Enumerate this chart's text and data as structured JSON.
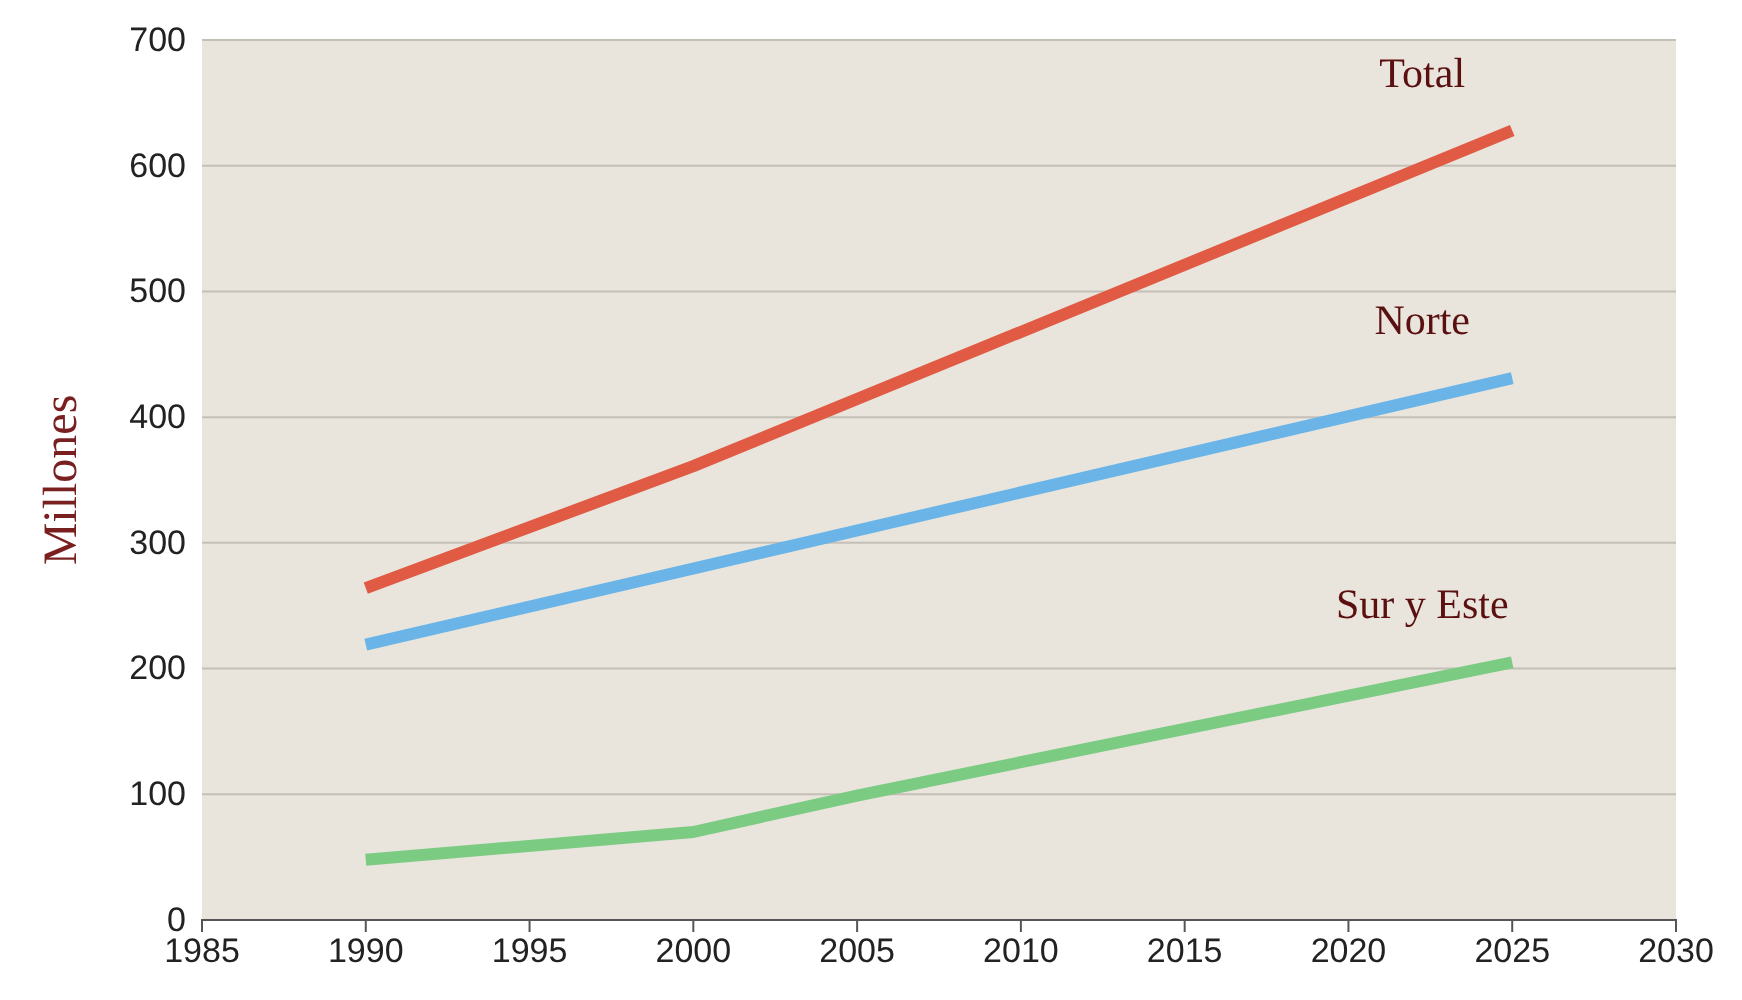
{
  "chart_data": {
    "type": "line",
    "ylabel": "Millones",
    "xlim": [
      1985,
      2030
    ],
    "xticks": [
      1985,
      1990,
      1995,
      2000,
      2005,
      2010,
      2015,
      2020,
      2025,
      2030
    ],
    "ylim": [
      0,
      700
    ],
    "yticks": [
      0,
      100,
      200,
      300,
      400,
      500,
      600,
      700
    ],
    "grid": "y",
    "legend": false,
    "marker": "none",
    "line_style": "solid",
    "series": [
      {
        "name": "Total",
        "color": "#e05a44",
        "x": [
          1990,
          2000,
          2025
        ],
        "values": [
          264,
          361,
          628
        ]
      },
      {
        "name": "Norte",
        "color": "#6ab4e8",
        "x": [
          1990,
          2025
        ],
        "values": [
          219,
          431
        ]
      },
      {
        "name": "Sur y Este",
        "color": "#7ccb83",
        "x": [
          1990,
          2000,
          2005,
          2025
        ],
        "values": [
          48,
          70,
          99,
          205
        ]
      }
    ]
  }
}
